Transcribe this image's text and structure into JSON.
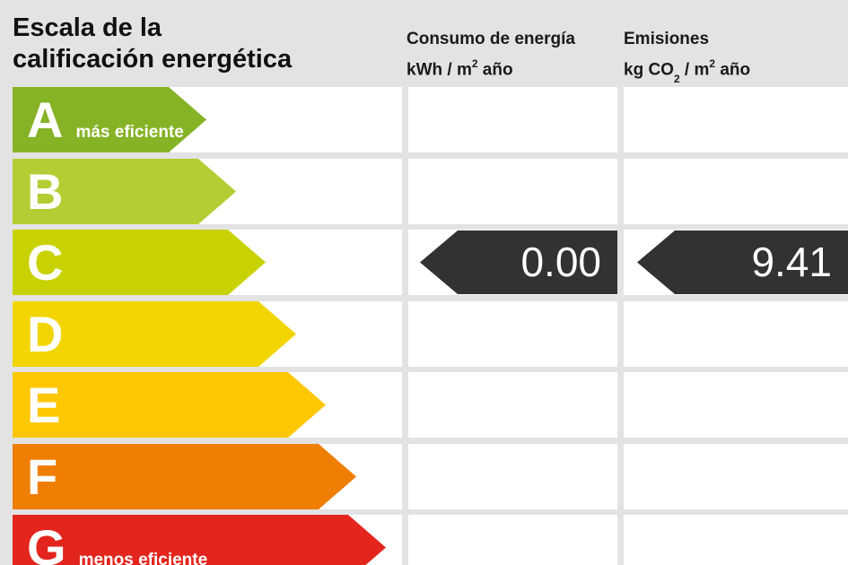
{
  "page": {
    "background": "#e3e3e3"
  },
  "header": {
    "title_line1": "Escala de la",
    "title_line2": "calificación energética",
    "col_consumo": {
      "line1": "Consumo de energía",
      "unit_prefix": "kWh / m",
      "unit_sup": "2",
      "unit_suffix": " año"
    },
    "col_emisiones": {
      "line1": "Emisiones",
      "unit_prefix": "kg CO",
      "unit_sub": "2",
      "unit_mid": " / m",
      "unit_sup": "2",
      "unit_suffix": " año"
    }
  },
  "scale": {
    "rows": [
      {
        "letter": "A",
        "note": "más eficiente",
        "color": "#86B226"
      },
      {
        "letter": "B",
        "note": "",
        "color": "#B4CD34"
      },
      {
        "letter": "C",
        "note": "",
        "color": "#C9D201"
      },
      {
        "letter": "D",
        "note": "",
        "color": "#F2D500"
      },
      {
        "letter": "E",
        "note": "",
        "color": "#FDC702"
      },
      {
        "letter": "F",
        "note": "",
        "color": "#EE7E04"
      },
      {
        "letter": "G",
        "note": "menos eficiente",
        "color": "#E3251D"
      }
    ],
    "indicator_color": "#323232",
    "indicated_rating": "C",
    "consumo_value": "0.00",
    "emisiones_value": "9.41"
  },
  "chart_data": {
    "type": "bar",
    "title": "Escala de la calificación energética",
    "orientation": "horizontal",
    "categories": [
      "A",
      "B",
      "C",
      "D",
      "E",
      "F",
      "G"
    ],
    "bar_lengths_relative": [
      1,
      2,
      3,
      4,
      5,
      6,
      7
    ],
    "bar_colors": [
      "#86B226",
      "#B4CD34",
      "#C9D201",
      "#F2D500",
      "#FDC702",
      "#EE7E04",
      "#E3251D"
    ],
    "annotations": [
      {
        "category": "A",
        "label": "más eficiente"
      },
      {
        "category": "G",
        "label": "menos eficiente"
      }
    ],
    "columns": [
      {
        "name": "Consumo de energía",
        "unit": "kWh / m² año"
      },
      {
        "name": "Emisiones",
        "unit": "kg CO₂ / m² año"
      }
    ],
    "indicated_rating": "C",
    "values": {
      "consumo_kwh_m2_ano": 0.0,
      "emisiones_kg_co2_m2_ano": 9.41
    },
    "legend_position": "none",
    "grid": false
  }
}
